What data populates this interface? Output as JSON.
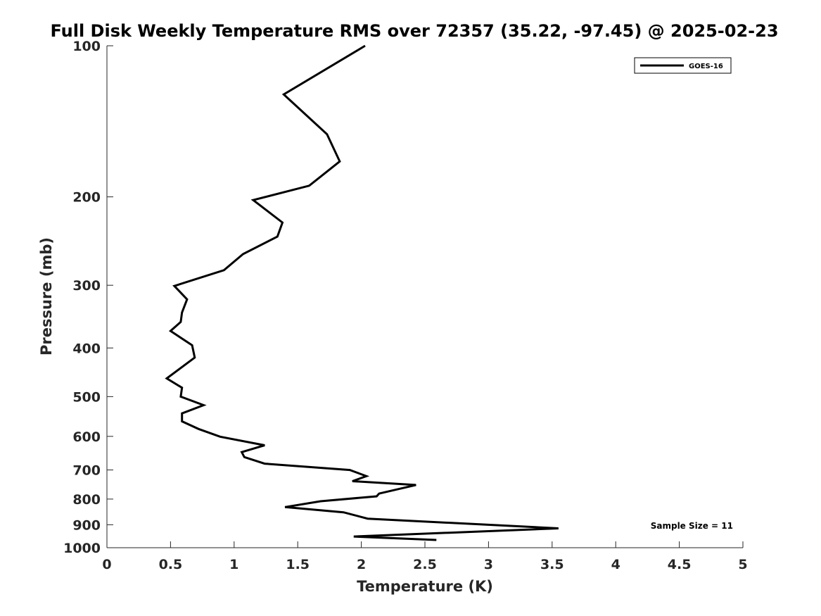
{
  "chart_data": {
    "type": "line",
    "title": "Full Disk Weekly Temperature RMS over 72357 (35.22, -97.45) @ 2025-02-23",
    "xlabel": "Temperature (K)",
    "ylabel": "Pressure (mb)",
    "xlim": [
      0,
      5
    ],
    "ylim": [
      100,
      1000
    ],
    "y_scale": "log",
    "y_reversed": true,
    "grid": false,
    "legend_position": "top-right",
    "x_ticks": [
      "0",
      "0.5",
      "1",
      "1.5",
      "2",
      "2.5",
      "3",
      "3.5",
      "4",
      "4.5",
      "5"
    ],
    "y_ticks": [
      "100",
      "200",
      "300",
      "400",
      "500",
      "600",
      "700",
      "800",
      "900",
      "1000"
    ],
    "series": [
      {
        "name": "GOES-16",
        "color": "#000000",
        "points": [
          [
            2.03,
            100
          ],
          [
            1.39,
            125
          ],
          [
            1.73,
            150
          ],
          [
            1.83,
            170
          ],
          [
            1.59,
            190
          ],
          [
            1.15,
            203
          ],
          [
            1.38,
            225
          ],
          [
            1.34,
            240
          ],
          [
            1.07,
            260
          ],
          [
            0.92,
            280
          ],
          [
            0.53,
            301
          ],
          [
            0.63,
            320
          ],
          [
            0.59,
            340
          ],
          [
            0.58,
            355
          ],
          [
            0.5,
            370
          ],
          [
            0.67,
            395
          ],
          [
            0.69,
            418
          ],
          [
            0.47,
            460
          ],
          [
            0.59,
            480
          ],
          [
            0.58,
            500
          ],
          [
            0.76,
            520
          ],
          [
            0.59,
            540
          ],
          [
            0.59,
            560
          ],
          [
            0.72,
            580
          ],
          [
            0.89,
            601
          ],
          [
            1.24,
            625
          ],
          [
            1.06,
            645
          ],
          [
            1.08,
            660
          ],
          [
            1.24,
            680
          ],
          [
            1.91,
            700
          ],
          [
            2.04,
            720
          ],
          [
            1.93,
            737
          ],
          [
            2.43,
            750
          ],
          [
            2.14,
            780
          ],
          [
            2.12,
            790
          ],
          [
            1.68,
            808
          ],
          [
            1.4,
            830
          ],
          [
            1.86,
            850
          ],
          [
            2.05,
            875
          ],
          [
            3.55,
            915
          ],
          [
            1.94,
            950
          ],
          [
            2.59,
            965
          ]
        ]
      }
    ],
    "annotations": [
      "Sample Size = 11"
    ]
  }
}
